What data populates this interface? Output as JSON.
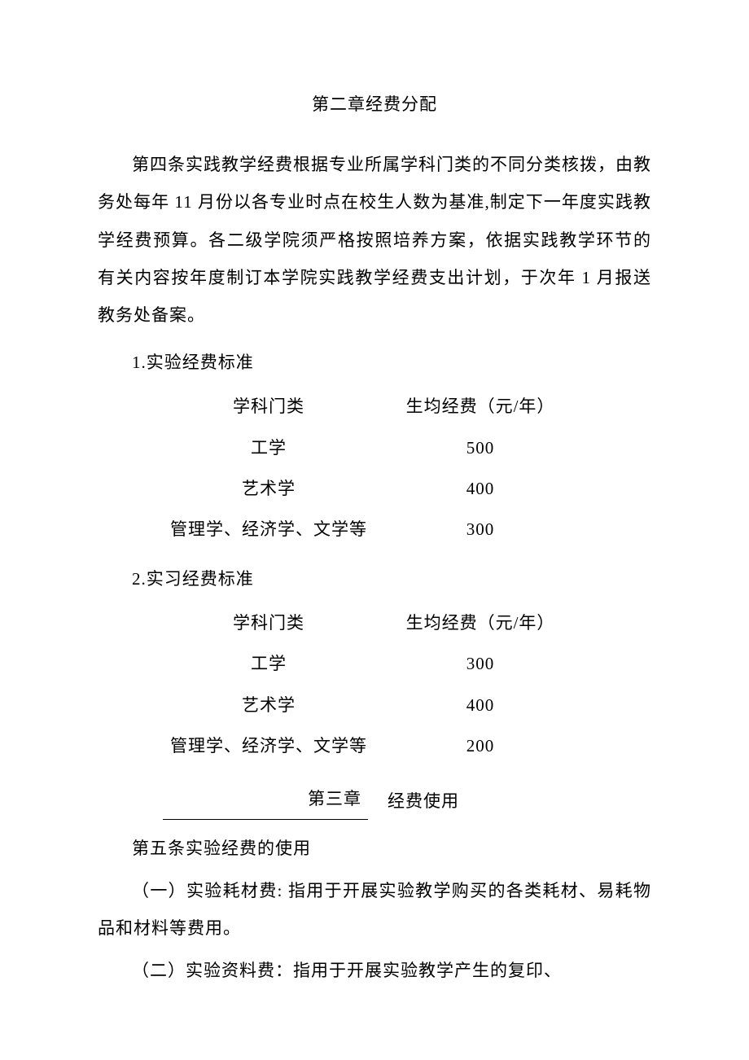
{
  "chapter2": {
    "title": "第二章经费分配",
    "article4": "第四条实践教学经费根据专业所属学科门类的不同分类核拨，由教务处每年 11 月份以各专业时点在校生人数为基准,制定下一年度实践教学经费预算。各二级学院须严格按照培养方案，依据实践教学环节的有关内容按年度制订本学院实践教学经费支出计划，于次年 1 月报送教务处备案。",
    "section1": {
      "label": "1.实验经费标准",
      "header_col1": "学科门类",
      "header_col2": "生均经费（元/年）",
      "rows": [
        {
          "c1": "工学",
          "c2": "500"
        },
        {
          "c1": "艺术学",
          "c2": "400"
        },
        {
          "c1": "管理学、经济学、文学等",
          "c2": "300"
        }
      ]
    },
    "section2": {
      "label": "2.实习经费标准",
      "header_col1": "学科门类",
      "header_col2": "生均经费（元/年）",
      "rows": [
        {
          "c1": "工学",
          "c2": "300"
        },
        {
          "c1": "艺术学",
          "c2": "400"
        },
        {
          "c1": "管理学、经济学、文学等",
          "c2": "200"
        }
      ]
    }
  },
  "chapter3": {
    "title_left": "第三章",
    "title_right": "经费使用",
    "article5_label": "第五条实验经费的使用",
    "item1": "（一）实验耗材费: 指用于开展实验教学购买的各类耗材、易耗物品和材料等费用。",
    "item2": "（二）实验资料费：指用于开展实验教学产生的复印、"
  }
}
